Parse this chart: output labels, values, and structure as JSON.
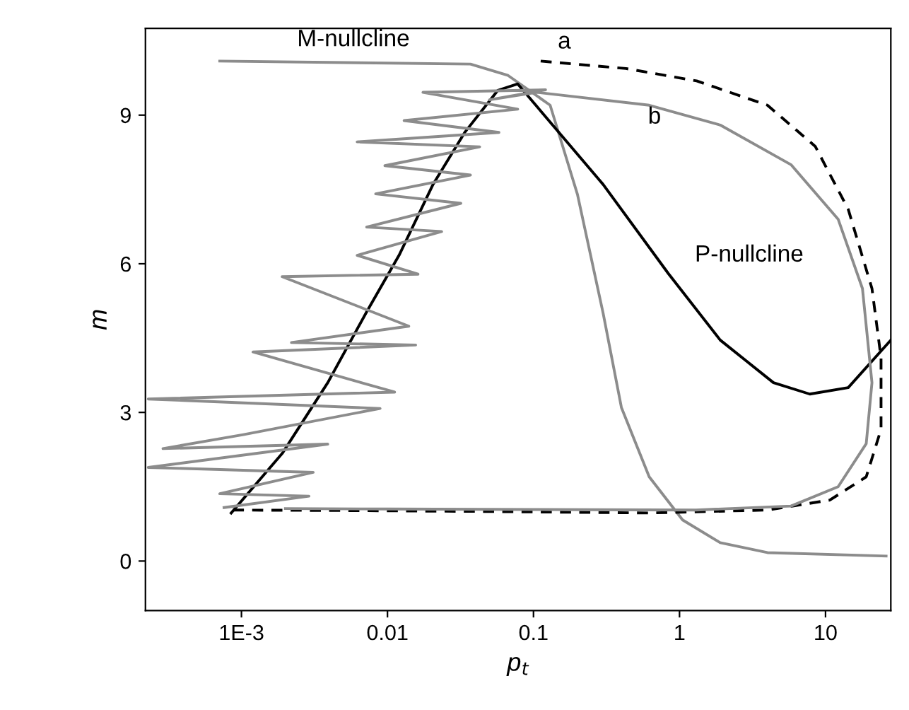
{
  "chart_data": {
    "type": "line",
    "xlabel": "p$_{t}$",
    "ylabel": "m",
    "log": "x",
    "xlim": [
      0.00022,
      28
    ],
    "ylim": [
      -1,
      10.75
    ],
    "xticks": [
      {
        "value": 0.001,
        "label": "1E-3"
      },
      0.01,
      0.1,
      1,
      10
    ],
    "yticks": [
      0,
      3,
      6,
      9
    ],
    "grid": false,
    "legend": false,
    "marker": "none",
    "series": [
      {
        "name": "M-nullcline",
        "color": "#8c8c8c",
        "line_style": "solid",
        "x": [
          0.00071,
          0.037,
          0.067,
          0.13,
          0.2,
          0.3,
          0.4,
          0.62,
          1.05,
          1.9,
          4,
          26
        ],
        "values": [
          10.09,
          10.03,
          9.8,
          9.2,
          7.4,
          5.0,
          3.1,
          1.7,
          0.83,
          0.37,
          0.17,
          0.1
        ]
      },
      {
        "name": "P-nullcline",
        "color": "#000000",
        "line_style": "solid",
        "x": [
          0.00085,
          0.0019,
          0.0039,
          0.0072,
          0.012,
          0.0205,
          0.034,
          0.057,
          0.078,
          0.3,
          0.84,
          1.9,
          4.4,
          7.8,
          14.3,
          28
        ],
        "values": [
          0.97,
          2.17,
          3.6,
          5.03,
          6.17,
          7.6,
          8.66,
          9.5,
          9.63,
          7.6,
          5.8,
          4.46,
          3.6,
          3.37,
          3.5,
          4.46
        ]
      },
      {
        "name": "a",
        "color": "#000000",
        "line_style": "dashed",
        "x": [
          0.112,
          0.43,
          1.31,
          4.0,
          8.5,
          14.3,
          20.8,
          24,
          24,
          19,
          10.7,
          4,
          0.62,
          0.05,
          0.005,
          0.00077
        ],
        "values": [
          10.09,
          9.94,
          9.69,
          9.2,
          8.37,
          7.1,
          5.5,
          4.1,
          2.66,
          1.7,
          1.23,
          1.03,
          0.97,
          1.0,
          1.02,
          1.03
        ]
      },
      {
        "name": "b",
        "color": "#8c8c8c",
        "line_style": "solid",
        "x": [
          0.00076,
          0.0029,
          0.00071,
          0.0031,
          0.00023,
          0.0039,
          0.00029,
          0.00103,
          0.0089,
          0.00023,
          0.0112,
          0.0012,
          0.0156,
          0.0022,
          0.014,
          0.0019,
          0.0162,
          0.0062,
          0.0235,
          0.0072,
          0.0318,
          0.0083,
          0.037,
          0.0096,
          0.0428,
          0.0062,
          0.058,
          0.013,
          0.078,
          0.0175,
          0.121,
          0.05,
          0.105,
          0.62,
          1.9,
          5.8,
          12.2,
          17.9,
          20.8,
          19,
          12.2,
          5.8,
          1.3,
          0.1,
          0.01,
          0.002
        ],
        "values": [
          1.08,
          1.31,
          1.36,
          1.79,
          1.89,
          2.36,
          2.27,
          2.55,
          3.08,
          3.27,
          3.41,
          4.22,
          4.36,
          4.41,
          4.74,
          5.74,
          5.79,
          6.17,
          6.65,
          6.74,
          7.22,
          7.41,
          7.79,
          7.98,
          8.36,
          8.46,
          8.65,
          8.89,
          9.12,
          9.46,
          9.51,
          9.31,
          9.46,
          9.2,
          8.8,
          8.0,
          6.9,
          5.5,
          3.6,
          2.37,
          1.5,
          1.11,
          1.03,
          1.04,
          1.05,
          1.06
        ]
      }
    ]
  }
}
